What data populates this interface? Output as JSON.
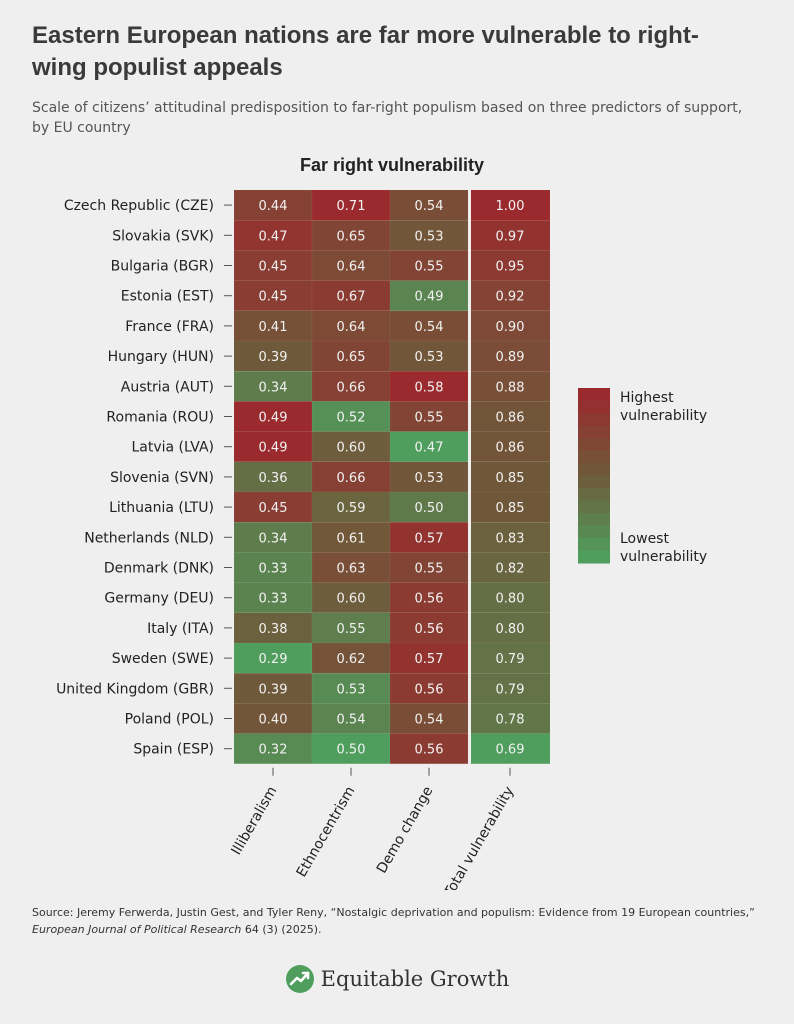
{
  "title": "Eastern European nations are far more vulnerable to right-wing populist appeals",
  "subtitle": "Scale of citizens’ attitudinal predisposition to far-right populism based on three predictors of support, by EU country",
  "source": {
    "prefix": "Source: Jeremy Ferwerda, Justin Gest, and Tyler Reny, “Nostalgic deprivation and populism: Evidence from 19 European countries,” ",
    "journal": "European Journal of Political Research",
    "suffix": " 64 (3) (2025)."
  },
  "brand": {
    "name": "Equitable Growth",
    "icon": "rising-arrow-logo-icon"
  },
  "chart_data": {
    "type": "heatmap",
    "title": "Far right vulnerability",
    "columns": [
      "Illiberalism",
      "Ethnocentrism",
      "Demo change",
      "Total vulnerability"
    ],
    "rows": [
      {
        "label": "Czech Republic (CZE)",
        "values": [
          0.44,
          0.71,
          0.54,
          1.0
        ]
      },
      {
        "label": "Slovakia (SVK)",
        "values": [
          0.47,
          0.65,
          0.53,
          0.97
        ]
      },
      {
        "label": "Bulgaria (BGR)",
        "values": [
          0.45,
          0.64,
          0.55,
          0.95
        ]
      },
      {
        "label": "Estonia (EST)",
        "values": [
          0.45,
          0.67,
          0.49,
          0.92
        ]
      },
      {
        "label": "France (FRA)",
        "values": [
          0.41,
          0.64,
          0.54,
          0.9
        ]
      },
      {
        "label": "Hungary (HUN)",
        "values": [
          0.39,
          0.65,
          0.53,
          0.89
        ]
      },
      {
        "label": "Austria (AUT)",
        "values": [
          0.34,
          0.66,
          0.58,
          0.88
        ]
      },
      {
        "label": "Romania (ROU)",
        "values": [
          0.49,
          0.52,
          0.55,
          0.86
        ]
      },
      {
        "label": "Latvia (LVA)",
        "values": [
          0.49,
          0.6,
          0.47,
          0.86
        ]
      },
      {
        "label": "Slovenia (SVN)",
        "values": [
          0.36,
          0.66,
          0.53,
          0.85
        ]
      },
      {
        "label": "Lithuania (LTU)",
        "values": [
          0.45,
          0.59,
          0.5,
          0.85
        ]
      },
      {
        "label": "Netherlands (NLD)",
        "values": [
          0.34,
          0.61,
          0.57,
          0.83
        ]
      },
      {
        "label": "Denmark (DNK)",
        "values": [
          0.33,
          0.63,
          0.55,
          0.82
        ]
      },
      {
        "label": "Germany (DEU)",
        "values": [
          0.33,
          0.6,
          0.56,
          0.8
        ]
      },
      {
        "label": "Italy (ITA)",
        "values": [
          0.38,
          0.55,
          0.56,
          0.8
        ]
      },
      {
        "label": "Sweden (SWE)",
        "values": [
          0.29,
          0.62,
          0.57,
          0.79
        ]
      },
      {
        "label": "United Kingdom (GBR)",
        "values": [
          0.39,
          0.53,
          0.56,
          0.79
        ]
      },
      {
        "label": "Poland (POL)",
        "values": [
          0.4,
          0.54,
          0.54,
          0.78
        ]
      },
      {
        "label": "Spain (ESP)",
        "values": [
          0.32,
          0.5,
          0.56,
          0.69
        ]
      }
    ],
    "legend": {
      "high_label": "Highest vulnerability",
      "low_label": "Lowest vulnerability",
      "placement": "right",
      "high_color": "#9b2a2e",
      "low_color": "#4f9e5e"
    },
    "colors": {
      "high": "#9b2a2e",
      "mid": "#6e5a3a",
      "low": "#4f9e5e"
    }
  }
}
